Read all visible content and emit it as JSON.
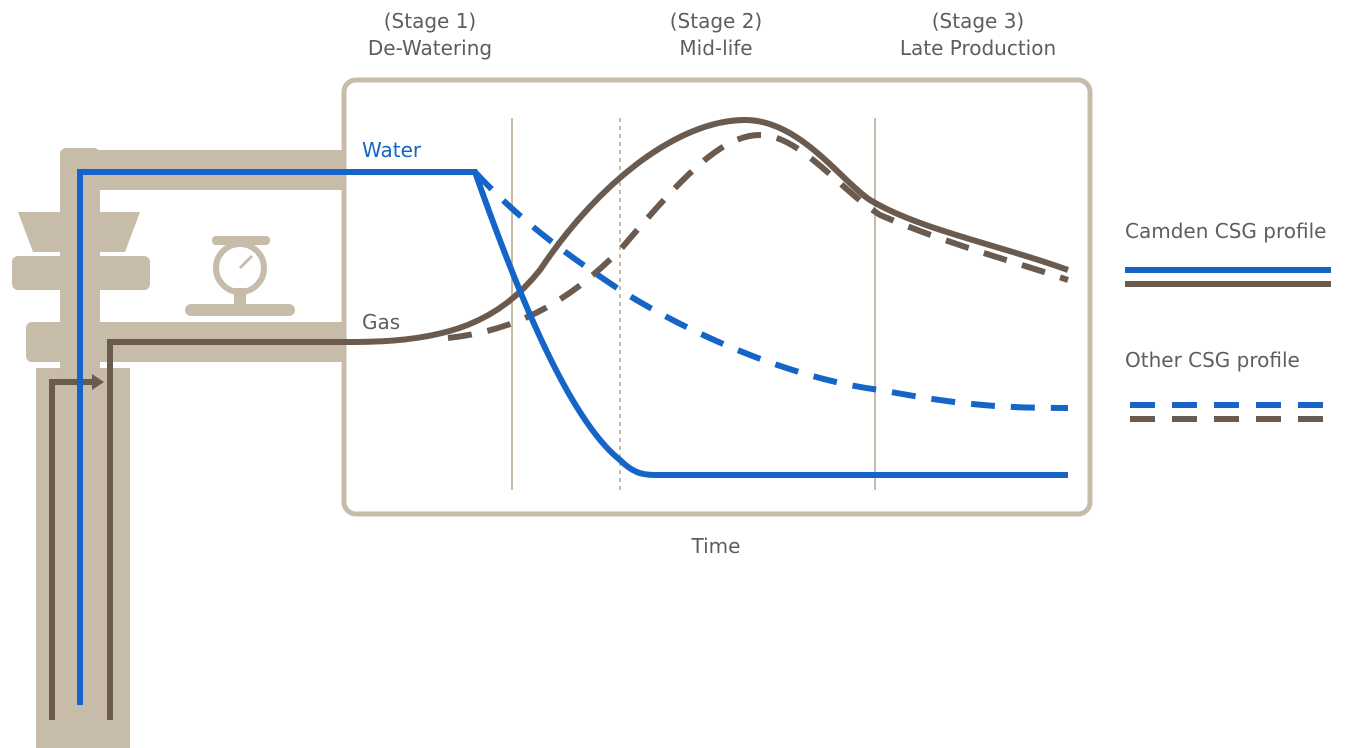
{
  "stages": [
    {
      "number": "(Stage 1)",
      "name": "De-Watering"
    },
    {
      "number": "(Stage 2)",
      "name": "Mid-life"
    },
    {
      "number": "(Stage 3)",
      "name": "Late Production"
    }
  ],
  "labels": {
    "water": "Water",
    "gas": "Gas",
    "x_axis": "Time"
  },
  "legend": [
    {
      "label": "Camden CSG profile"
    },
    {
      "label": "Other CSG profile"
    }
  ]
}
